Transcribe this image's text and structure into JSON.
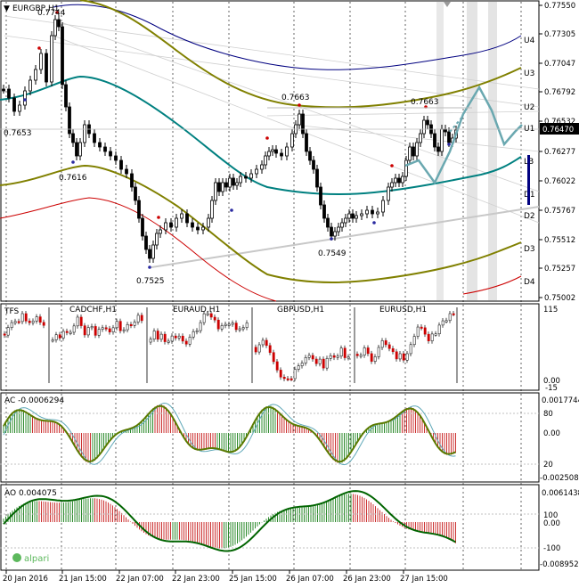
{
  "chart_title": "EURGBP,H1",
  "main_peak_label": "0.7744",
  "price_labels": {
    "high_left": "0.7653",
    "low_left": "0.7616",
    "mid_high": "0.7663",
    "right_high": "0.7663",
    "low_mid": "0.7549",
    "low_bottom": "0.7525"
  },
  "y_axis_main": [
    "0.77550",
    "0.77305",
    "0.77047",
    "0.76792",
    "0.76532",
    "0.76277",
    "0.76022",
    "0.75767",
    "0.75512",
    "0.75257",
    "0.75002"
  ],
  "current_price": "0.76470",
  "band_labels": [
    "U4",
    "U3",
    "U2",
    "U1",
    "LB",
    "D1",
    "D2",
    "D3",
    "D4"
  ],
  "tfs_label": "TFS",
  "pair_labels": [
    "CADCHF,H1",
    "EURAUD,H1",
    "GBPUSD,H1",
    "EURUSD,H1"
  ],
  "tfs_axis": [
    "115",
    "0.00",
    "-15"
  ],
  "ac_label": "AC -0.0006294",
  "ac_axis": [
    "0.0017744",
    "80",
    "0.00",
    "20",
    "-0.0025085"
  ],
  "ao_label": "AO 0.004075",
  "ao_axis": [
    "0.0061438",
    "100",
    "0.00",
    "-100",
    "-0.0089523"
  ],
  "time_labels": [
    "20 Jan 2016",
    "21 Jan 15:00",
    "22 Jan 07:00",
    "22 Jan 23:00",
    "25 Jan 15:00",
    "26 Jan 07:00",
    "26 Jan 23:00",
    "27 Jan 15:00"
  ],
  "brand": "alpari",
  "colors": {
    "candle_bull": "#000000",
    "candle_bear": "#000000",
    "band_olive": "#808000",
    "band_teal": "#008080",
    "band_navy": "#000080",
    "band_red": "#cc0000",
    "forecast": "#6aa8b0",
    "ao_line": "#006400"
  }
}
